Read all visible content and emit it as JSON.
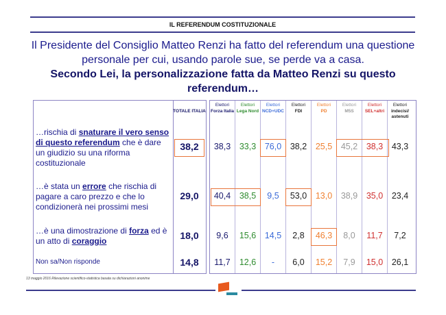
{
  "section_title": "IL REFERENDUM COSTITUZIONALE",
  "headline": {
    "line1": "Il Presidente del Consiglio Matteo Renzi ha fatto del referendum una questione personale per cui, usando parole sue, se perde va a casa.",
    "line2": "Secondo Lei, la personalizzazione fatta da Matteo Renzi su questo referendum…"
  },
  "total_header": "TOTALE ITALIA",
  "columns": [
    {
      "top": "Elettori",
      "bottom": "Forza Italia",
      "color": "#1a1a6e"
    },
    {
      "top": "Elettori",
      "bottom": "Lega Nord",
      "color": "#2e8b2e"
    },
    {
      "top": "Elettori",
      "bottom": "NCD+UDC",
      "color": "#3a6ad8"
    },
    {
      "top": "Elettori",
      "bottom": "FDI",
      "color": "#222222"
    },
    {
      "top": "Elettori",
      "bottom": "PD",
      "color": "#f08030"
    },
    {
      "top": "Elettori",
      "bottom": "M5S",
      "color": "#999999"
    },
    {
      "top": "Elettori",
      "bottom": "SEL+altri",
      "color": "#d03030"
    },
    {
      "top": "Elettori",
      "bottom": "indecisi/ astenuti",
      "color": "#222222"
    }
  ],
  "rows": [
    {
      "pre": "…rischia di ",
      "strong": "snaturare il vero senso di questo referendum",
      "post": " che è dare un giudizio su una riforma costituzionale",
      "total": "38,2",
      "values": [
        "38,3",
        "33,3",
        "76,0",
        "38,2",
        "25,5",
        "45,2",
        "38,3",
        "43,3"
      ]
    },
    {
      "pre": "…è stata un ",
      "strong": "errore",
      "post": " che rischia di pagare a caro prezzo e che lo condizionerà nei prossimi mesi",
      "total": "29,0",
      "values": [
        "40,4",
        "38,5",
        "9,5",
        "53,0",
        "13,0",
        "38,9",
        "35,0",
        "23,4"
      ]
    },
    {
      "pre": "…è una dimostrazione di ",
      "strong": "forza",
      "mid": " ed è un atto di ",
      "strong2": "coraggio",
      "total": "18,0",
      "values": [
        "9,6",
        "15,6",
        "14,5",
        "2,8",
        "46,3",
        "8,0",
        "11,7",
        "7,2"
      ]
    },
    {
      "pre": "Non sa/Non risponde",
      "total": "14,8",
      "values": [
        "11,7",
        "12,6",
        "-",
        "6,0",
        "15,2",
        "7,9",
        "15,0",
        "26,1"
      ]
    }
  ],
  "footnote": "13 maggio 2016 Rilevazione scientifico-statistica basata su dichiarazioni anonime"
}
